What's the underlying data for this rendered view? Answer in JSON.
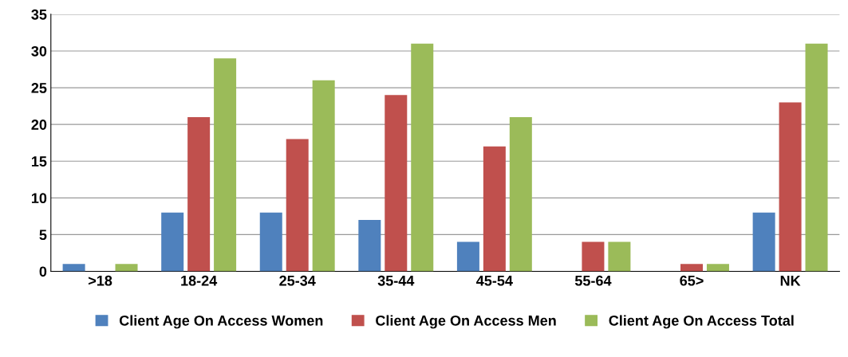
{
  "chart_data": {
    "type": "bar",
    "categories": [
      ">18",
      "18-24",
      "25-34",
      "35-44",
      "45-54",
      "55-64",
      "65>",
      "NK"
    ],
    "series": [
      {
        "name": "Client Age On Access Women",
        "color": "#4f81bd",
        "values": [
          1,
          8,
          8,
          7,
          4,
          0,
          0,
          8
        ]
      },
      {
        "name": "Client Age On Access Men",
        "color": "#c0504d",
        "values": [
          0,
          21,
          18,
          24,
          17,
          4,
          1,
          23
        ]
      },
      {
        "name": "Client Age On Access Total",
        "color": "#9bbb59",
        "values": [
          1,
          29,
          26,
          31,
          21,
          4,
          1,
          31
        ]
      }
    ],
    "ylim": [
      0,
      35
    ],
    "yticks": [
      0,
      5,
      10,
      15,
      20,
      25,
      30,
      35
    ],
    "grid": "y",
    "legend": "bottom"
  }
}
